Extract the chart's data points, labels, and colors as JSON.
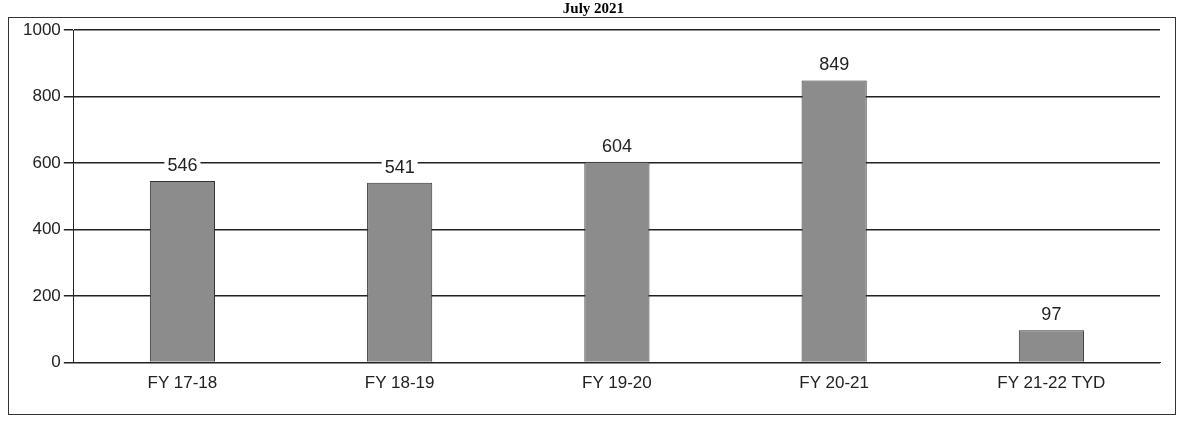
{
  "chart_data": {
    "type": "bar",
    "title": "July 2021",
    "categories": [
      "FY 17-18",
      "FY 18-19",
      "FY 19-20",
      "FY 20-21",
      "FY 21-22 TYD"
    ],
    "values": [
      546,
      541,
      604,
      849,
      97
    ],
    "color": "#8c8c8c",
    "ylim": [
      0,
      1000
    ],
    "yticks": [
      0,
      200,
      400,
      600,
      800,
      1000
    ],
    "grid": "y",
    "data_labels": true
  }
}
